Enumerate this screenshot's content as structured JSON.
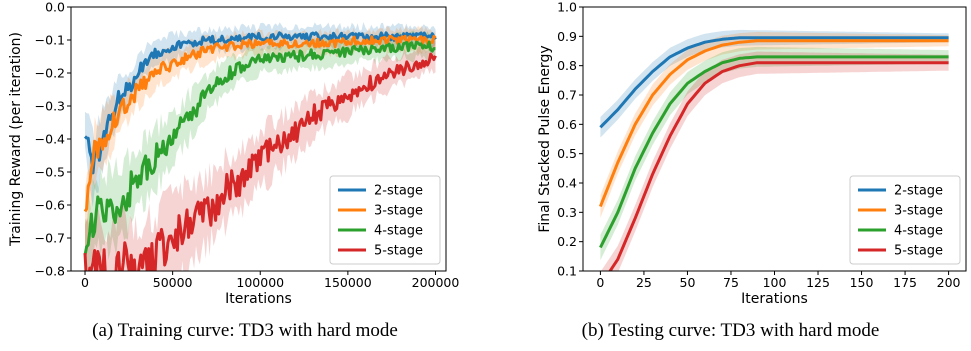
{
  "figure": {
    "captions": [
      "(a) Training curve: TD3 with hard mode",
      "(b) Testing curve: TD3 with hard mode"
    ]
  },
  "colors": {
    "2-stage": "#1f77b4",
    "3-stage": "#ff7f0e",
    "4-stage": "#2ca02c",
    "5-stage": "#d62728"
  },
  "chart_data": [
    {
      "type": "line",
      "xlabel": "Iterations",
      "ylabel": "Training Reward (per iteration)",
      "xlim": [
        -8000,
        206000
      ],
      "ylim": [
        -0.8,
        0.0
      ],
      "xticks": [
        0,
        50000,
        100000,
        150000,
        200000
      ],
      "xtick_labels": [
        "0",
        "50000",
        "100000",
        "150000",
        "200000"
      ],
      "yticks": [
        0.0,
        -0.1,
        -0.2,
        -0.3,
        -0.4,
        -0.5,
        -0.6,
        -0.7,
        -0.8
      ],
      "ytick_labels": [
        "0.0",
        "−0.1",
        "−0.2",
        "−0.3",
        "−0.4",
        "−0.5",
        "−0.6",
        "−0.7",
        "−0.8"
      ],
      "grid": false,
      "legend_position": "lower right",
      "band": "shaded variance around each series (noisy)",
      "series": [
        {
          "name": "2-stage",
          "x": [
            0,
            5000,
            10000,
            15000,
            20000,
            25000,
            30000,
            35000,
            40000,
            50000,
            60000,
            70000,
            80000,
            90000,
            100000,
            120000,
            140000,
            160000,
            180000,
            200000
          ],
          "values": [
            -0.37,
            -0.5,
            -0.4,
            -0.33,
            -0.27,
            -0.25,
            -0.2,
            -0.16,
            -0.14,
            -0.12,
            -0.11,
            -0.1,
            -0.1,
            -0.095,
            -0.09,
            -0.09,
            -0.09,
            -0.09,
            -0.09,
            -0.09
          ]
        },
        {
          "name": "3-stage",
          "x": [
            0,
            5000,
            10000,
            15000,
            20000,
            30000,
            40000,
            50000,
            60000,
            70000,
            80000,
            100000,
            120000,
            140000,
            160000,
            180000,
            200000
          ],
          "values": [
            -0.66,
            -0.45,
            -0.4,
            -0.36,
            -0.32,
            -0.25,
            -0.2,
            -0.17,
            -0.15,
            -0.13,
            -0.12,
            -0.11,
            -0.11,
            -0.11,
            -0.1,
            -0.1,
            -0.1
          ]
        },
        {
          "name": "4-stage",
          "x": [
            0,
            5000,
            10000,
            20000,
            30000,
            40000,
            50000,
            60000,
            70000,
            80000,
            90000,
            100000,
            120000,
            140000,
            160000,
            180000,
            200000
          ],
          "values": [
            -0.8,
            -0.63,
            -0.62,
            -0.6,
            -0.52,
            -0.46,
            -0.4,
            -0.33,
            -0.26,
            -0.21,
            -0.18,
            -0.16,
            -0.15,
            -0.14,
            -0.13,
            -0.12,
            -0.12
          ]
        },
        {
          "name": "5-stage",
          "x": [
            0,
            10000,
            20000,
            30000,
            40000,
            50000,
            60000,
            70000,
            80000,
            90000,
            100000,
            110000,
            120000,
            130000,
            140000,
            150000,
            160000,
            170000,
            180000,
            190000,
            200000
          ],
          "values": [
            -0.8,
            -0.8,
            -0.78,
            -0.79,
            -0.76,
            -0.7,
            -0.66,
            -0.62,
            -0.56,
            -0.52,
            -0.46,
            -0.42,
            -0.38,
            -0.33,
            -0.3,
            -0.27,
            -0.24,
            -0.21,
            -0.19,
            -0.17,
            -0.15
          ]
        }
      ]
    },
    {
      "type": "line",
      "xlabel": "Iterations",
      "ylabel": "Final Stacked Pulse Energy",
      "xlim": [
        -10,
        210
      ],
      "ylim": [
        0.1,
        1.0
      ],
      "xticks": [
        0,
        25,
        50,
        75,
        100,
        125,
        150,
        175,
        200
      ],
      "xtick_labels": [
        "0",
        "25",
        "50",
        "75",
        "100",
        "125",
        "150",
        "175",
        "200"
      ],
      "yticks": [
        0.1,
        0.2,
        0.3,
        0.4,
        0.5,
        0.6,
        0.7,
        0.8,
        0.9,
        1.0
      ],
      "ytick_labels": [
        "0.1",
        "0.2",
        "0.3",
        "0.4",
        "0.5",
        "0.6",
        "0.7",
        "0.8",
        "0.9",
        "1.0"
      ],
      "grid": false,
      "legend_position": "lower right",
      "band": "shaded variance around each series",
      "series": [
        {
          "name": "2-stage",
          "x": [
            0,
            10,
            20,
            30,
            40,
            50,
            60,
            70,
            80,
            90,
            100,
            120,
            140,
            160,
            180,
            200
          ],
          "values": [
            0.59,
            0.65,
            0.72,
            0.78,
            0.83,
            0.86,
            0.88,
            0.89,
            0.895,
            0.895,
            0.895,
            0.895,
            0.895,
            0.895,
            0.895,
            0.895
          ]
        },
        {
          "name": "3-stage",
          "x": [
            0,
            10,
            20,
            30,
            40,
            50,
            60,
            70,
            80,
            90,
            100,
            120,
            140,
            160,
            180,
            200
          ],
          "values": [
            0.32,
            0.47,
            0.6,
            0.7,
            0.77,
            0.82,
            0.85,
            0.87,
            0.88,
            0.885,
            0.885,
            0.885,
            0.885,
            0.885,
            0.885,
            0.885
          ]
        },
        {
          "name": "4-stage",
          "x": [
            0,
            10,
            20,
            30,
            40,
            50,
            60,
            70,
            80,
            90,
            100,
            120,
            140,
            160,
            180,
            200
          ],
          "values": [
            0.18,
            0.3,
            0.45,
            0.57,
            0.67,
            0.74,
            0.78,
            0.81,
            0.825,
            0.83,
            0.83,
            0.83,
            0.83,
            0.83,
            0.83,
            0.83
          ]
        },
        {
          "name": "5-stage",
          "x": [
            0,
            10,
            20,
            30,
            40,
            50,
            60,
            70,
            80,
            90,
            100,
            120,
            140,
            160,
            180,
            200
          ],
          "values": [
            0.05,
            0.14,
            0.28,
            0.43,
            0.56,
            0.67,
            0.74,
            0.78,
            0.8,
            0.81,
            0.81,
            0.81,
            0.81,
            0.81,
            0.81,
            0.81
          ]
        }
      ]
    }
  ]
}
